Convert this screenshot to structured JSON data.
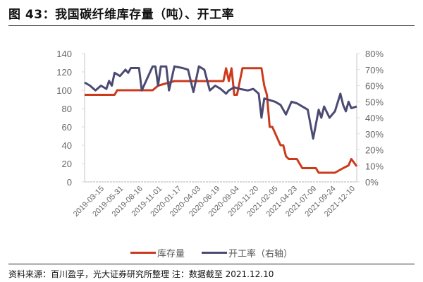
{
  "title": "图 43：我国碳纤维库存量（吨）、开工率",
  "footnote": "资料来源：百川盈孚，光大证券研究所整理  注：数据截至 2021.12.10",
  "colors": {
    "inventory": "#cc3a1c",
    "utilization": "#4b4a72",
    "axis": "#d9d9d9"
  },
  "chart_data": {
    "type": "line",
    "title": "我国碳纤维库存量（吨）、开工率",
    "xlabel": "",
    "ylabel_left": "库存量（吨）",
    "ylabel_right": "开工率",
    "ylim_left": [
      0,
      140
    ],
    "ylim_right": [
      0,
      0.8
    ],
    "yticks_left": [
      "0",
      "20",
      "40",
      "60",
      "80",
      "100",
      "120",
      "140"
    ],
    "yticks_right": [
      "0%",
      "10%",
      "20%",
      "30%",
      "40%",
      "50%",
      "60%",
      "70%",
      "80%"
    ],
    "x_tick_labels": [
      "2019-03-15",
      "2019-05-31",
      "2019-08-16",
      "2019-11-01",
      "2020-01-17",
      "2020-04-03",
      "2020-06-19",
      "2020-09-04",
      "2020-11-20",
      "2021-02-05",
      "2021-04-23",
      "2021-07-09",
      "2021-09-24",
      "2021-12-10"
    ],
    "legend": [
      "库存量",
      "开工率（右轴）"
    ],
    "legend_position": "bottom",
    "grid": false,
    "series": [
      {
        "name": "库存量",
        "axis": "left",
        "x_frac": [
          0,
          0.11,
          0.12,
          0.25,
          0.27,
          0.33,
          0.51,
          0.52,
          0.53,
          0.54,
          0.55,
          0.56,
          0.58,
          0.59,
          0.65,
          0.66,
          0.67,
          0.68,
          0.69,
          0.72,
          0.73,
          0.74,
          0.75,
          0.76,
          0.78,
          0.8,
          0.85,
          0.86,
          0.88,
          0.92,
          0.95,
          0.97,
          0.98,
          1.0
        ],
        "values": [
          95,
          95,
          100,
          100,
          105,
          110,
          110,
          124,
          110,
          124,
          95,
          95,
          124,
          124,
          124,
          105,
          95,
          60,
          60,
          40,
          40,
          28,
          25,
          25,
          25,
          15,
          15,
          10,
          10,
          10,
          15,
          18,
          25,
          17
        ]
      },
      {
        "name": "开工率（右轴）",
        "axis": "right",
        "x_frac": [
          0,
          0.02,
          0.04,
          0.06,
          0.08,
          0.09,
          0.1,
          0.11,
          0.13,
          0.15,
          0.16,
          0.17,
          0.2,
          0.21,
          0.25,
          0.26,
          0.27,
          0.28,
          0.3,
          0.31,
          0.33,
          0.36,
          0.38,
          0.4,
          0.42,
          0.44,
          0.46,
          0.48,
          0.5,
          0.52,
          0.53,
          0.55,
          0.57,
          0.6,
          0.62,
          0.64,
          0.65,
          0.66,
          0.7,
          0.72,
          0.74,
          0.76,
          0.78,
          0.8,
          0.82,
          0.84,
          0.86,
          0.87,
          0.88,
          0.9,
          0.92,
          0.94,
          0.95,
          0.96,
          0.97,
          0.98,
          1.0
        ],
        "values": [
          0.62,
          0.6,
          0.57,
          0.6,
          0.58,
          0.63,
          0.6,
          0.68,
          0.66,
          0.7,
          0.68,
          0.71,
          0.71,
          0.57,
          0.72,
          0.72,
          0.6,
          0.72,
          0.72,
          0.57,
          0.72,
          0.71,
          0.7,
          0.56,
          0.72,
          0.7,
          0.57,
          0.6,
          0.58,
          0.55,
          0.57,
          0.59,
          0.58,
          0.57,
          0.58,
          0.55,
          0.4,
          0.52,
          0.5,
          0.48,
          0.42,
          0.5,
          0.49,
          0.47,
          0.45,
          0.27,
          0.45,
          0.4,
          0.47,
          0.4,
          0.44,
          0.55,
          0.48,
          0.44,
          0.5,
          0.46,
          0.47
        ]
      }
    ]
  }
}
